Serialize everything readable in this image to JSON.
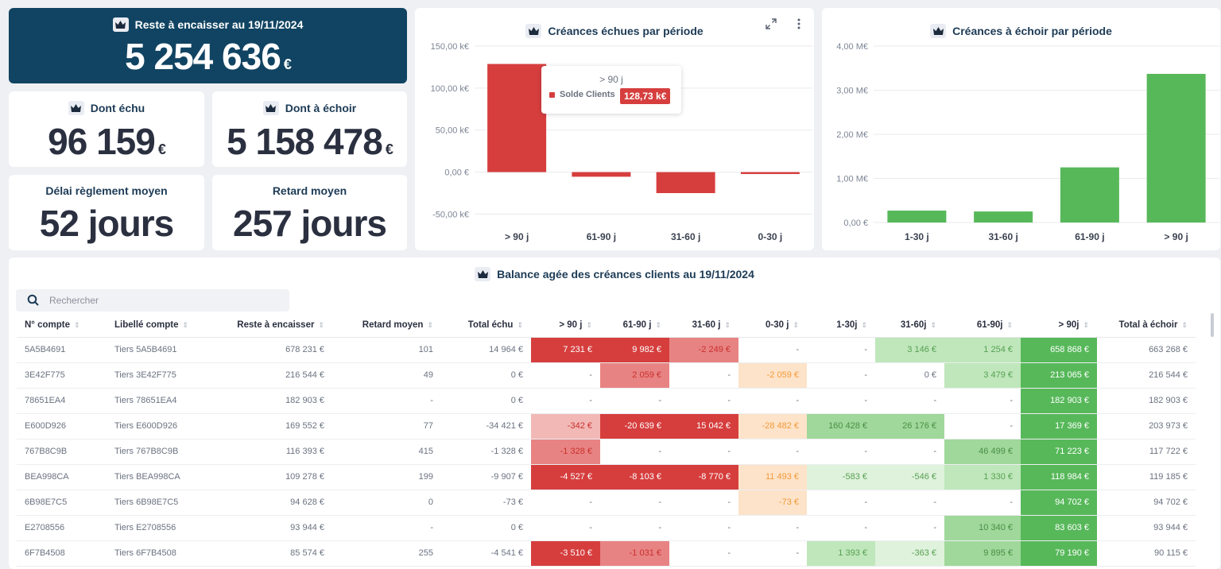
{
  "kpis": {
    "hero_title": "Reste à encaisser au 19/11/2024",
    "hero_value": "5 254 636",
    "currency": "€",
    "echu_title": "Dont échu",
    "echu_value": "96 159",
    "aechoir_title": "Dont à échoir",
    "aechoir_value": "5 158 478",
    "delai_title": "Délai règlement moyen",
    "delai_value": "52 jours",
    "retard_title": "Retard moyen",
    "retard_value": "257 jours"
  },
  "chart_data": [
    {
      "type": "bar",
      "title": "Créances échues par période",
      "categories": [
        "> 90 j",
        "61-90 j",
        "31-60 j",
        "0-30 j"
      ],
      "series": [
        {
          "name": "Solde Clients",
          "values": [
            128.73,
            -5.5,
            -25.0,
            -2.3
          ]
        }
      ],
      "unit": "k€",
      "ylim": [
        -60,
        150
      ],
      "yticks": [
        -50,
        0,
        50,
        100,
        150
      ],
      "ytick_labels": [
        "-50,00 k€",
        "0,00 €",
        "50,00 k€",
        "100,00 k€",
        "150,00 k€"
      ],
      "color": "#d63e3e",
      "tooltip": {
        "category": "> 90 j",
        "series": "Solde Clients",
        "value": "128,73 k€"
      }
    },
    {
      "type": "bar",
      "title": "Créances à échoir par période",
      "categories": [
        "1-30 j",
        "31-60 j",
        "61-90 j",
        "> 90 j"
      ],
      "series": [
        {
          "values": [
            0.27,
            0.25,
            1.25,
            3.37
          ]
        }
      ],
      "unit": "M€",
      "ylim": [
        0,
        4
      ],
      "yticks": [
        0,
        1,
        2,
        3,
        4
      ],
      "ytick_labels": [
        "0,00 €",
        "1,00 M€",
        "2,00 M€",
        "3,00 M€",
        "4,00 M€"
      ],
      "color": "#57b85a"
    }
  ],
  "table": {
    "title": "Balance agée des créances clients au 19/11/2024",
    "search_placeholder": "Rechercher",
    "columns": [
      "N° compte",
      "Libellé compte",
      "Reste à encaisser",
      "Retard moyen",
      "Total échu",
      "> 90 j",
      "61-90 j",
      "31-60 j",
      "0-30 j",
      "1-30j",
      "31-60j",
      "61-90j",
      "> 90j",
      "Total à échoir"
    ],
    "rows": [
      [
        "5A5B4691",
        "Tiers 5A5B4691",
        "678 231 €",
        "101",
        "14 964 €",
        "7 231 €",
        "9 982 €",
        "-2 249 €",
        "-",
        "-",
        "3 146 €",
        "1 254 €",
        "658 868 €",
        "663 268 €"
      ],
      [
        "3E42F775",
        "Tiers 3E42F775",
        "216 544 €",
        "49",
        "0 €",
        "-",
        "2 059 €",
        "-",
        "-2 059 €",
        "-",
        "0 €",
        "3 479 €",
        "213 065 €",
        "216 544 €"
      ],
      [
        "78651EA4",
        "Tiers 78651EA4",
        "182 903 €",
        "-",
        "0 €",
        "-",
        "-",
        "-",
        "-",
        "-",
        "-",
        "-",
        "182 903 €",
        "182 903 €"
      ],
      [
        "E600D926",
        "Tiers E600D926",
        "169 552 €",
        "77",
        "-34 421 €",
        "-342 €",
        "-20 639 €",
        "15 042 €",
        "-28 482 €",
        "160 428 €",
        "26 176 €",
        "-",
        "17 369 €",
        "203 973 €"
      ],
      [
        "767B8C9B",
        "Tiers 767B8C9B",
        "116 393 €",
        "415",
        "-1 328 €",
        "-1 328 €",
        "-",
        "-",
        "-",
        "-",
        "-",
        "46 499 €",
        "71 223 €",
        "117 722 €"
      ],
      [
        "BEA998CA",
        "Tiers BEA998CA",
        "109 278 €",
        "199",
        "-9 907 €",
        "-4 527 €",
        "-8 103 €",
        "-8 770 €",
        "11 493 €",
        "-583 €",
        "-546 €",
        "1 330 €",
        "118 984 €",
        "119 185 €"
      ],
      [
        "6B98E7C5",
        "Tiers 6B98E7C5",
        "94 628 €",
        "0",
        "-73 €",
        "-",
        "-",
        "-",
        "-73 €",
        "-",
        "-",
        "-",
        "94 702 €",
        "94 702 €"
      ],
      [
        "E2708556",
        "Tiers E2708556",
        "93 944 €",
        "-",
        "0 €",
        "-",
        "-",
        "-",
        "-",
        "-",
        "-",
        "10 340 €",
        "83 603 €",
        "93 944 €"
      ],
      [
        "6F7B4508",
        "Tiers 6F7B4508",
        "85 574 €",
        "255",
        "-4 541 €",
        "-3 510 €",
        "-1 031 €",
        "-",
        "-",
        "1 393 €",
        "-363 €",
        "9 895 €",
        "79 190 €",
        "90 115 €"
      ]
    ]
  }
}
